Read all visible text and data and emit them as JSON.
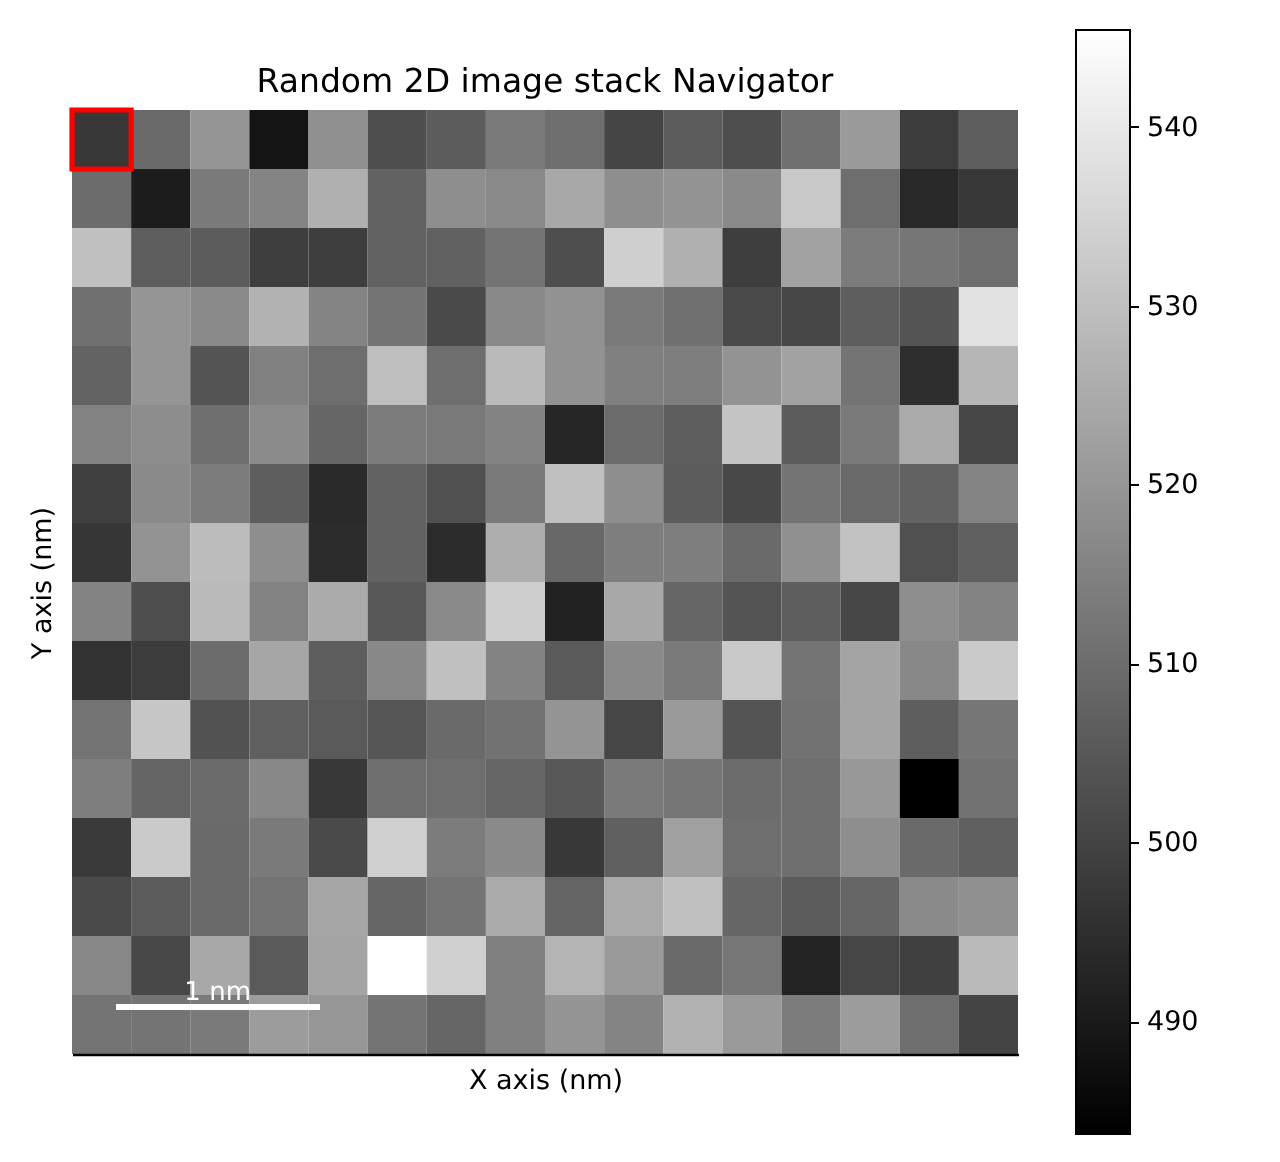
{
  "chart_data": {
    "type": "heatmap",
    "title": "Random 2D image stack Navigator",
    "xlabel": "X axis (nm)",
    "ylabel": "Y axis (nm)",
    "categories": [
      null,
      null,
      null,
      null,
      null,
      null,
      null,
      null,
      null,
      null,
      null,
      null,
      null,
      null,
      null,
      null
    ],
    "y_categories": [
      null,
      null,
      null,
      null,
      null,
      null,
      null,
      null,
      null,
      null,
      null,
      null,
      null,
      null,
      null,
      null
    ],
    "cells": [
      [
        497.2,
        509.4,
        519.8,
        488.5,
        518.5,
        502.6,
        506.0,
        513.2,
        510.3,
        500.4,
        506.0,
        502.6,
        510.8,
        521.0,
        498.2,
        506.4
      ],
      [
        509.8,
        490.5,
        513.2,
        515.6,
        526.3,
        507.4,
        518.1,
        517.1,
        524.4,
        518.1,
        519.3,
        517.1,
        532.1,
        510.3,
        493.4,
        497.2
      ],
      [
        530.2,
        506.4,
        506.0,
        498.7,
        498.7,
        507.4,
        507.2,
        511.8,
        502.6,
        533.8,
        526.3,
        498.7,
        522.9,
        513.7,
        512.3,
        510.3
      ],
      [
        510.8,
        519.8,
        517.1,
        526.8,
        515.6,
        511.8,
        501.6,
        516.9,
        519.0,
        513.2,
        510.8,
        501.6,
        500.9,
        506.4,
        504.0,
        538.4
      ],
      [
        507.7,
        519.8,
        504.0,
        514.9,
        510.3,
        529.7,
        510.3,
        528.7,
        519.0,
        514.7,
        514.2,
        519.3,
        522.9,
        511.8,
        494.8,
        527.7
      ],
      [
        515.4,
        517.6,
        510.3,
        517.3,
        508.4,
        513.7,
        513.2,
        515.4,
        492.9,
        509.8,
        506.4,
        531.1,
        506.0,
        513.2,
        524.8,
        500.6
      ],
      [
        499.2,
        517.1,
        513.7,
        506.4,
        493.9,
        507.4,
        503.1,
        513.2,
        530.2,
        518.1,
        506.0,
        501.1,
        511.8,
        509.4,
        507.4,
        515.6
      ],
      [
        496.8,
        519.3,
        529.2,
        518.1,
        494.3,
        507.4,
        494.3,
        525.8,
        508.9,
        514.2,
        514.2,
        509.4,
        518.5,
        530.6,
        503.1,
        506.9
      ],
      [
        515.4,
        502.6,
        528.7,
        515.2,
        525.1,
        505.0,
        517.1,
        533.3,
        491.9,
        524.4,
        508.4,
        504.0,
        506.4,
        500.6,
        518.1,
        515.4
      ],
      [
        496.0,
        498.2,
        509.8,
        523.9,
        506.4,
        516.6,
        530.2,
        515.4,
        505.5,
        517.1,
        513.2,
        532.1,
        511.8,
        523.4,
        516.6,
        532.6
      ],
      [
        511.8,
        531.6,
        503.5,
        506.9,
        505.5,
        504.5,
        509.4,
        511.3,
        519.5,
        500.6,
        521.0,
        504.0,
        511.3,
        523.4,
        506.4,
        512.3
      ],
      [
        514.2,
        508.1,
        509.6,
        516.6,
        497.2,
        510.3,
        510.3,
        508.4,
        505.0,
        513.2,
        512.3,
        509.8,
        510.3,
        520.5,
        483.7,
        511.3
      ],
      [
        497.7,
        532.6,
        509.4,
        513.2,
        501.6,
        534.0,
        513.7,
        517.1,
        497.2,
        506.9,
        522.4,
        510.3,
        510.3,
        518.1,
        509.4,
        506.9
      ],
      [
        501.6,
        506.0,
        509.4,
        511.8,
        523.9,
        508.4,
        511.8,
        524.8,
        507.9,
        524.8,
        530.2,
        508.4,
        506.0,
        508.4,
        517.1,
        518.5
      ],
      [
        516.6,
        501.1,
        524.4,
        505.5,
        523.4,
        545.4,
        534.0,
        514.7,
        527.3,
        521.0,
        509.4,
        512.5,
        492.4,
        500.6,
        499.2,
        528.7
      ],
      [
        511.8,
        511.8,
        513.2,
        521.5,
        520.0,
        511.8,
        508.4,
        514.7,
        519.5,
        515.6,
        526.8,
        521.0,
        513.7,
        521.5,
        510.3,
        500.2
      ]
    ],
    "clim": [
      483.7,
      545.4
    ],
    "cticks": [
      490,
      500,
      510,
      520,
      530,
      540
    ],
    "annotations": [
      "1 nm"
    ],
    "tick_labels": false
  }
}
